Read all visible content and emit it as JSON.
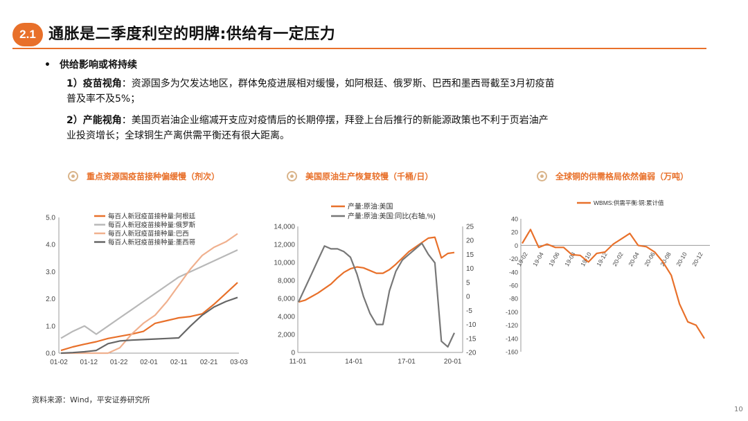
{
  "header": {
    "section_no": "2.1",
    "title": "通胀是二季度利空的明牌:供给有一定压力"
  },
  "bullets": {
    "main": "供给影响或将持续",
    "p1_tag": "1）疫苗视角",
    "p1_line1": "：资源国多为欠发达地区，群体免疫进展相对缓慢，如阿根廷、俄罗斯、巴西和墨西哥截至3月初疫苗",
    "p1_line2": "普及率不及5%；",
    "p2_tag": "2）产能视角",
    "p2_line1": "：美国页岩油企业缩减开支应对疫情后的长期停摆，拜登上台后推行的新能源政策也不利于页岩油产",
    "p2_line2": "业投资增长；全球铜生产离供需平衡还有很大距离。"
  },
  "footnote": "资料来源：Wind，平安证券研究所",
  "page_no": "10",
  "colors": {
    "accent": "#e8702a",
    "gray": "#aaaaaa",
    "light": "#f0b08e",
    "dark": "#666666"
  },
  "chart_data": [
    {
      "type": "line",
      "title": "重点资源国疫苗接种偏缓慢（剂次）",
      "ylim": [
        0,
        5
      ],
      "yticks": [
        "0.0",
        "1.0",
        "2.0",
        "3.0",
        "4.0",
        "5.0"
      ],
      "xticks": [
        "01-02",
        "01-12",
        "01-22",
        "02-01",
        "02-11",
        "02-21",
        "03-03"
      ],
      "series": [
        {
          "name": "每百人新冠疫苗接种量:阿根廷",
          "color": "#e8702a",
          "values": [
            0.1,
            0.23,
            0.33,
            0.42,
            0.54,
            0.62,
            0.7,
            0.8,
            1.1,
            1.2,
            1.3,
            1.35,
            1.45,
            1.8,
            2.2,
            2.6
          ]
        },
        {
          "name": "每百人新冠疫苗接种量:俄罗斯",
          "color": "#b8b8b8",
          "values": [
            0.55,
            0.8,
            1.0,
            0.7,
            1.0,
            1.3,
            1.6,
            1.9,
            2.2,
            2.5,
            2.8,
            3.0,
            3.2,
            3.4,
            3.6,
            3.8
          ]
        },
        {
          "name": "每百人新冠疫苗接种量:巴西",
          "color": "#f0b08e",
          "values": [
            0.0,
            0.0,
            0.0,
            0.0,
            0.0,
            0.2,
            0.7,
            1.1,
            1.4,
            1.9,
            2.5,
            3.1,
            3.6,
            3.9,
            4.1,
            4.4
          ]
        },
        {
          "name": "每百人新冠疫苗接种量:墨西哥",
          "color": "#666666",
          "values": [
            0.0,
            0.02,
            0.05,
            0.1,
            0.35,
            0.45,
            0.48,
            0.5,
            0.52,
            0.54,
            0.56,
            1.0,
            1.4,
            1.7,
            1.9,
            2.05
          ]
        }
      ]
    },
    {
      "type": "line",
      "title": "美国原油生产恢复较慢（千桶/日）",
      "ylim": [
        0,
        14000
      ],
      "yticks": [
        "0",
        "2,000",
        "4,000",
        "6,000",
        "8,000",
        "10,000",
        "12,000",
        "14,000"
      ],
      "y2lim": [
        -20,
        25
      ],
      "y2ticks": [
        "-20",
        "-15",
        "-10",
        "-5",
        "0",
        "5",
        "10",
        "15",
        "20",
        "25"
      ],
      "xticks": [
        "11-01",
        "14-01",
        "17-01",
        "20-01"
      ],
      "series": [
        {
          "name": "产量:原油:美国",
          "color": "#e8702a",
          "axis": "left",
          "values": [
            5600,
            5800,
            6200,
            6600,
            7100,
            7600,
            8300,
            8900,
            9300,
            9500,
            9400,
            9100,
            8800,
            8800,
            9200,
            9800,
            10500,
            11200,
            11700,
            12200,
            12700,
            12800,
            10500,
            11000,
            11100
          ]
        },
        {
          "name": "产量:原油:美国:同比(右轴,%)",
          "color": "#777777",
          "axis": "right",
          "values": [
            -2,
            3,
            8,
            13,
            18,
            17,
            17,
            16,
            14,
            8,
            0,
            -6,
            -10,
            -10,
            2,
            9,
            13,
            15,
            17,
            19,
            15,
            12,
            -16,
            -18,
            -13
          ]
        }
      ]
    },
    {
      "type": "line",
      "title": "全球铜的供需格局依然偏弱（万吨）",
      "ylim": [
        -160,
        40
      ],
      "yticks": [
        "-160",
        "-140",
        "-120",
        "-100",
        "-80",
        "-60",
        "-40",
        "-20",
        "0",
        "20",
        "40"
      ],
      "xticks": [
        "19-02",
        "19-04",
        "19-06",
        "19-08",
        "19-10",
        "19-12",
        "20-02",
        "20-04",
        "20-06",
        "20-08",
        "20-10",
        "20-12"
      ],
      "series": [
        {
          "name": "WBMS:供需平衡:铜:累计值",
          "color": "#e8702a",
          "values": [
            3,
            24,
            -3,
            2,
            -3,
            -3,
            -14,
            -15,
            -25,
            -12,
            -10,
            2,
            10,
            18,
            0,
            -2,
            -10,
            -25,
            -45,
            -88,
            -115,
            -120,
            -140
          ]
        }
      ]
    }
  ]
}
